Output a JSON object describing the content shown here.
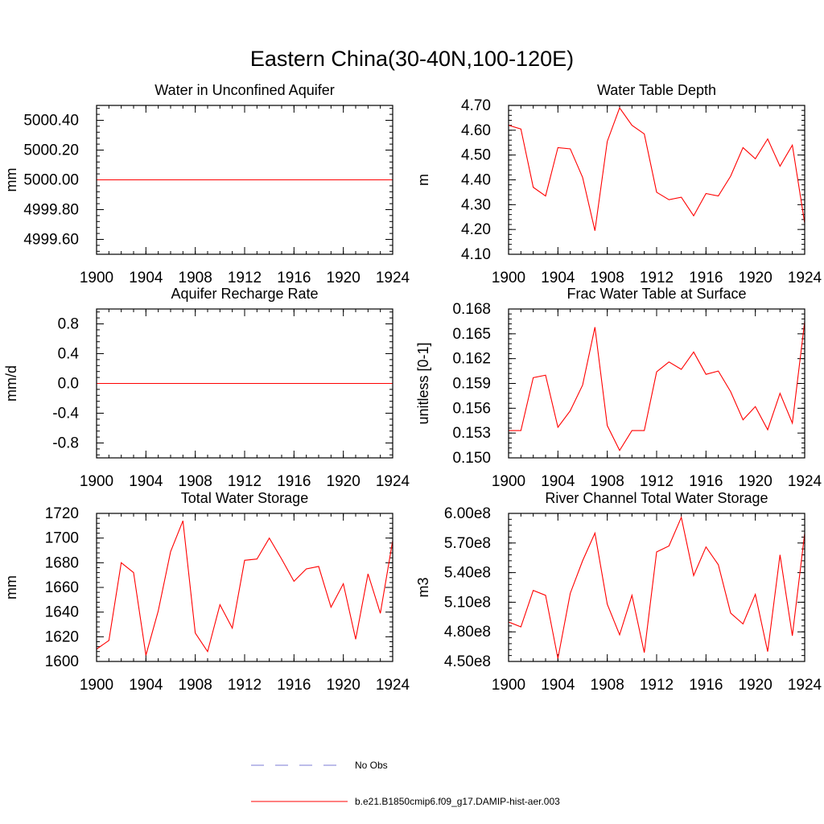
{
  "figure": {
    "title": "Eastern China(30-40N,100-120E)"
  },
  "colors": {
    "model_line": "#ff0000",
    "obs_line": "#7b7bd6",
    "axis": "#000000",
    "background": "#ffffff"
  },
  "legend": {
    "placement": "bottom-center",
    "entries": [
      {
        "label": "No Obs",
        "style": "dashed",
        "color": "#7b7bd6"
      },
      {
        "label": "b.e21.B1850cmip6.f09_g17.DAMIP-hist-aer.003",
        "style": "solid",
        "color": "#ff0000"
      }
    ]
  },
  "chart_data": [
    {
      "type": "line",
      "title": "Water in Unconfined Aquifer",
      "ylabel": "mm",
      "xlabel": "",
      "xlim": [
        1900,
        1924
      ],
      "ylim": [
        4999.5,
        5000.5
      ],
      "xticks": [
        "1900",
        "1904",
        "1908",
        "1912",
        "1916",
        "1920",
        "1924"
      ],
      "yticks": [
        "4999.60",
        "4999.80",
        "5000.00",
        "5000.20",
        "5000.40"
      ],
      "x": [
        1900,
        1901,
        1902,
        1903,
        1904,
        1905,
        1906,
        1907,
        1908,
        1909,
        1910,
        1911,
        1912,
        1913,
        1914,
        1915,
        1916,
        1917,
        1918,
        1919,
        1920,
        1921,
        1922,
        1923,
        1924
      ],
      "series": [
        {
          "name": "b.e21.B1850cmip6.f09_g17.DAMIP-hist-aer.003",
          "values": [
            5000,
            5000,
            5000,
            5000,
            5000,
            5000,
            5000,
            5000,
            5000,
            5000,
            5000,
            5000,
            5000,
            5000,
            5000,
            5000,
            5000,
            5000,
            5000,
            5000,
            5000,
            5000,
            5000,
            5000,
            5000
          ]
        }
      ]
    },
    {
      "type": "line",
      "title": "Water Table Depth",
      "ylabel": "m",
      "xlabel": "",
      "xlim": [
        1900,
        1924
      ],
      "ylim": [
        4.1,
        4.7
      ],
      "xticks": [
        "1900",
        "1904",
        "1908",
        "1912",
        "1916",
        "1920",
        "1924"
      ],
      "yticks": [
        "4.10",
        "4.20",
        "4.30",
        "4.40",
        "4.50",
        "4.60",
        "4.70"
      ],
      "x": [
        1900,
        1901,
        1902,
        1903,
        1904,
        1905,
        1906,
        1907,
        1908,
        1909,
        1910,
        1911,
        1912,
        1913,
        1914,
        1915,
        1916,
        1917,
        1918,
        1919,
        1920,
        1921,
        1922,
        1923,
        1924
      ],
      "series": [
        {
          "name": "b.e21.B1850cmip6.f09_g17.DAMIP-hist-aer.003",
          "values": [
            4.62,
            4.605,
            4.37,
            4.335,
            4.53,
            4.525,
            4.41,
            4.195,
            4.555,
            4.69,
            4.62,
            4.585,
            4.35,
            4.32,
            4.33,
            4.255,
            4.345,
            4.335,
            4.415,
            4.53,
            4.485,
            4.565,
            4.455,
            4.54,
            4.225
          ]
        }
      ]
    },
    {
      "type": "line",
      "title": "Aquifer Recharge Rate",
      "ylabel": "mm/d",
      "xlabel": "",
      "xlim": [
        1900,
        1924
      ],
      "ylim": [
        -1.0,
        1.0
      ],
      "xticks": [
        "1900",
        "1904",
        "1908",
        "1912",
        "1916",
        "1920",
        "1924"
      ],
      "yticks": [
        "-0.8",
        "-0.4",
        "0.0",
        "0.4",
        "0.8"
      ],
      "x": [
        1900,
        1901,
        1902,
        1903,
        1904,
        1905,
        1906,
        1907,
        1908,
        1909,
        1910,
        1911,
        1912,
        1913,
        1914,
        1915,
        1916,
        1917,
        1918,
        1919,
        1920,
        1921,
        1922,
        1923,
        1924
      ],
      "series": [
        {
          "name": "b.e21.B1850cmip6.f09_g17.DAMIP-hist-aer.003",
          "values": [
            0,
            0,
            0,
            0,
            0,
            0,
            0,
            0,
            0,
            0,
            0,
            0,
            0,
            0,
            0,
            0,
            0,
            0,
            0,
            0,
            0,
            0,
            0,
            0,
            0
          ]
        }
      ]
    },
    {
      "type": "line",
      "title": "Frac Water Table at Surface",
      "ylabel": "unitless [0-1]",
      "xlabel": "",
      "xlim": [
        1900,
        1924
      ],
      "ylim": [
        0.15,
        0.168
      ],
      "xticks": [
        "1900",
        "1904",
        "1908",
        "1912",
        "1916",
        "1920",
        "1924"
      ],
      "yticks": [
        "0.150",
        "0.153",
        "0.156",
        "0.159",
        "0.162",
        "0.165",
        "0.168"
      ],
      "x": [
        1900,
        1901,
        1902,
        1903,
        1904,
        1905,
        1906,
        1907,
        1908,
        1909,
        1910,
        1911,
        1912,
        1913,
        1914,
        1915,
        1916,
        1917,
        1918,
        1919,
        1920,
        1921,
        1922,
        1923,
        1924
      ],
      "series": [
        {
          "name": "b.e21.B1850cmip6.f09_g17.DAMIP-hist-aer.003",
          "values": [
            0.1533,
            0.1533,
            0.1597,
            0.16,
            0.1537,
            0.1557,
            0.1588,
            0.1658,
            0.1539,
            0.1509,
            0.1533,
            0.1533,
            0.1604,
            0.1616,
            0.1607,
            0.1628,
            0.1601,
            0.1605,
            0.158,
            0.1546,
            0.1562,
            0.1534,
            0.1578,
            0.1542,
            0.1665
          ]
        }
      ]
    },
    {
      "type": "line",
      "title": "Total Water Storage",
      "ylabel": "mm",
      "xlabel": "",
      "xlim": [
        1900,
        1924
      ],
      "ylim": [
        1600,
        1720
      ],
      "xticks": [
        "1900",
        "1904",
        "1908",
        "1912",
        "1916",
        "1920",
        "1924"
      ],
      "yticks": [
        "1600",
        "1620",
        "1640",
        "1660",
        "1680",
        "1700",
        "1720"
      ],
      "x": [
        1900,
        1901,
        1902,
        1903,
        1904,
        1905,
        1906,
        1907,
        1908,
        1909,
        1910,
        1911,
        1912,
        1913,
        1914,
        1915,
        1916,
        1917,
        1918,
        1919,
        1920,
        1921,
        1922,
        1923,
        1924
      ],
      "series": [
        {
          "name": "b.e21.B1850cmip6.f09_g17.DAMIP-hist-aer.003",
          "values": [
            1610,
            1617,
            1680,
            1672,
            1605,
            1641,
            1689,
            1714,
            1623,
            1608,
            1646,
            1627,
            1682,
            1683,
            1700,
            1683,
            1665,
            1675,
            1677,
            1644,
            1663,
            1618,
            1671,
            1639,
            1698
          ]
        }
      ]
    },
    {
      "type": "line",
      "title": "River Channel Total Water Storage",
      "ylabel": "m3",
      "xlabel": "",
      "xlim": [
        1900,
        1924
      ],
      "ylim": [
        450000000,
        600000000
      ],
      "xticks": [
        "1900",
        "1904",
        "1908",
        "1912",
        "1916",
        "1920",
        "1924"
      ],
      "yticks": [
        "4.50e8",
        "4.80e8",
        "5.10e8",
        "5.40e8",
        "5.70e8",
        "6.00e8"
      ],
      "x": [
        1900,
        1901,
        1902,
        1903,
        1904,
        1905,
        1906,
        1907,
        1908,
        1909,
        1910,
        1911,
        1912,
        1913,
        1914,
        1915,
        1916,
        1917,
        1918,
        1919,
        1920,
        1921,
        1922,
        1923,
        1924
      ],
      "series": [
        {
          "name": "b.e21.B1850cmip6.f09_g17.DAMIP-hist-aer.003",
          "values": [
            490000000,
            485000000,
            522000000,
            517000000,
            453000000,
            519000000,
            552000000,
            580000000,
            508000000,
            477000000,
            517000000,
            459000000,
            561000000,
            567000000,
            596000000,
            537000000,
            566000000,
            548000000,
            499000000,
            488000000,
            518000000,
            460000000,
            558000000,
            476000000,
            580000000
          ]
        }
      ]
    }
  ]
}
